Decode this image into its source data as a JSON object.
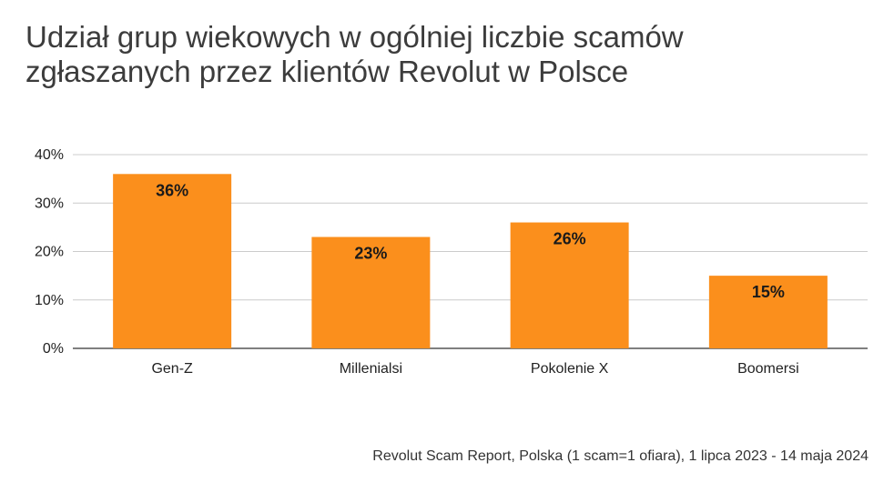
{
  "chart_data": {
    "type": "bar",
    "title_lines": [
      "Udział grup wiekowych w ogólniej liczbie scamów",
      "zgłaszanych przez klientów Revolut w Polsce"
    ],
    "categories": [
      "Gen-Z",
      "Millenialsi",
      "Pokolenie X",
      "Boomersi"
    ],
    "values": [
      36,
      23,
      26,
      15
    ],
    "data_labels": [
      "36%",
      "23%",
      "26%",
      "15%"
    ],
    "ylim": [
      0,
      40
    ],
    "y_ticks": [
      0,
      10,
      20,
      30,
      40
    ],
    "y_tick_labels": [
      "0%",
      "10%",
      "20%",
      "30%",
      "40%"
    ],
    "xlabel": "",
    "ylabel": "",
    "grid": true,
    "legend": "none",
    "bar_color": "#fb8f1c",
    "source": "Revolut Scam Report, Polska (1 scam=1 ofiara), 1 lipca 2023 - 14 maja 2024"
  }
}
